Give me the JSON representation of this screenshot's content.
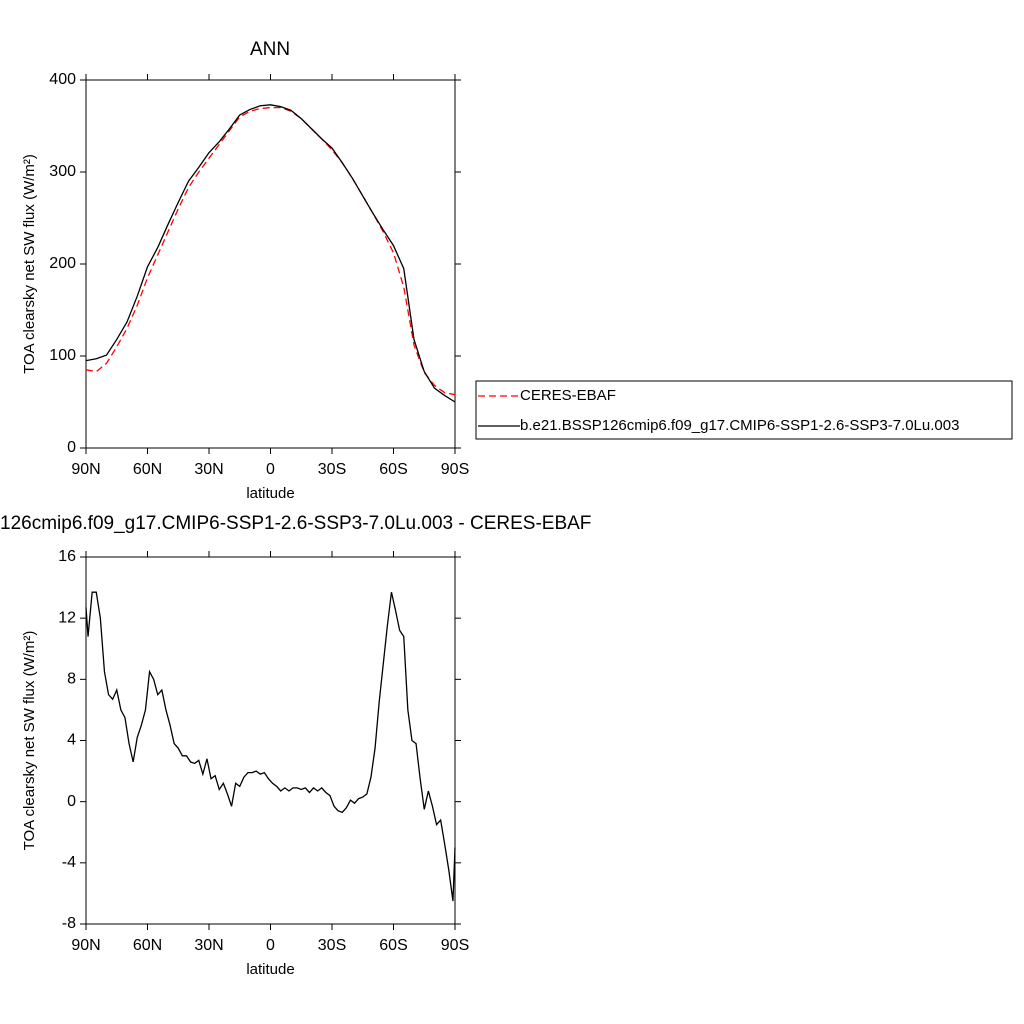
{
  "chart_data": [
    {
      "type": "line",
      "title": "ANN",
      "xlabel": "latitude",
      "ylabel": "TOA clearsky net SW flux (W/m²)",
      "x": [
        90,
        85,
        80,
        75,
        70,
        65,
        60,
        55,
        50,
        45,
        40,
        35,
        30,
        25,
        20,
        15,
        10,
        5,
        0,
        -5,
        -10,
        -15,
        -20,
        -25,
        -30,
        -35,
        -40,
        -45,
        -50,
        -55,
        -60,
        -65,
        -70,
        -75,
        -80,
        -85,
        -90
      ],
      "series": [
        {
          "name": "CERES-EBAF",
          "color": "#ff0000",
          "line_style": "dashed",
          "values": [
            85,
            83,
            92,
            110,
            130,
            155,
            185,
            210,
            235,
            260,
            283,
            300,
            315,
            330,
            345,
            360,
            366,
            369,
            370,
            370,
            366,
            358,
            347,
            336,
            324,
            310,
            293,
            274,
            255,
            235,
            212,
            175,
            112,
            82,
            68,
            60,
            58
          ]
        },
        {
          "name": "b.e21.BSSP126cmip6.f09_g17.CMIP6-SSP1-2.6-SSP3-7.0Lu.003",
          "color": "#000000",
          "line_style": "solid",
          "values": [
            95,
            97,
            101,
            118,
            137,
            165,
            197,
            218,
            243,
            267,
            290,
            305,
            321,
            333,
            347,
            362,
            368,
            372,
            373,
            371,
            367,
            358,
            347,
            336,
            326,
            310,
            293,
            274,
            255,
            237,
            220,
            195,
            118,
            83,
            65,
            57,
            50
          ]
        }
      ],
      "xlim": [
        90,
        -90
      ],
      "xticks": [
        {
          "value": 90,
          "label": "90N"
        },
        {
          "value": 60,
          "label": "60N"
        },
        {
          "value": 30,
          "label": "30N"
        },
        0,
        {
          "value": -30,
          "label": "30S"
        },
        {
          "value": -60,
          "label": "60S"
        },
        {
          "value": -90,
          "label": "90S"
        }
      ],
      "ylim": [
        0,
        400
      ],
      "yticks": [
        0,
        100,
        200,
        300,
        400
      ],
      "legend_position": "right"
    },
    {
      "type": "line",
      "title": "126cmip6.f09_g17.CMIP6-SSP1-2.6-SSP3-7.0Lu.003 - CERES-EBAF",
      "xlabel": "latitude",
      "ylabel": "TOA clearsky net SW flux (W/m²)",
      "x": [
        90,
        89,
        87,
        85,
        83,
        81,
        79,
        77,
        75,
        73,
        71,
        69,
        67,
        65,
        63,
        61,
        59,
        57,
        55,
        53,
        51,
        49,
        47,
        45,
        43,
        41,
        39,
        37,
        35,
        33,
        31,
        29,
        27,
        25,
        23,
        21,
        19,
        17,
        15,
        13,
        11,
        9,
        7,
        5,
        3,
        1,
        -1,
        -3,
        -5,
        -7,
        -9,
        -11,
        -13,
        -15,
        -17,
        -19,
        -21,
        -23,
        -25,
        -27,
        -29,
        -31,
        -33,
        -35,
        -37,
        -39,
        -41,
        -43,
        -45,
        -47,
        -49,
        -51,
        -53,
        -55,
        -57,
        -59,
        -61,
        -63,
        -65,
        -67,
        -69,
        -71,
        -73,
        -75,
        -77,
        -79,
        -81,
        -83,
        -85,
        -87,
        -89,
        -90
      ],
      "series": [
        {
          "color": "#000000",
          "line_style": "solid",
          "values": [
            12.7,
            10.8,
            13.7,
            13.7,
            12,
            8.5,
            7,
            6.7,
            7.3,
            6,
            5.5,
            3.8,
            2.6,
            4.2,
            5,
            6,
            8.5,
            8,
            7,
            7.3,
            6,
            5,
            3.8,
            3.5,
            3,
            3,
            2.6,
            2.5,
            2.7,
            1.8,
            2.8,
            1.5,
            1.7,
            0.8,
            1.2,
            0.5,
            -0.3,
            1.2,
            1,
            1.6,
            1.9,
            1.9,
            2,
            1.8,
            1.9,
            1.5,
            1.2,
            1,
            0.7,
            0.9,
            0.7,
            0.9,
            0.9,
            0.8,
            0.9,
            0.6,
            0.9,
            0.7,
            0.9,
            0.6,
            0.4,
            -0.3,
            -0.6,
            -0.7,
            -0.4,
            0.1,
            -0.1,
            0.2,
            0.3,
            0.5,
            1.6,
            3.5,
            6.5,
            9,
            11.5,
            13.7,
            12.5,
            11.2,
            10.8,
            6,
            4,
            3.8,
            1.5,
            -0.5,
            0.7,
            -0.3,
            -1.5,
            -1.2,
            -2.8,
            -4.5,
            -6.5,
            -3
          ]
        }
      ],
      "xlim": [
        90,
        -90
      ],
      "xticks": [
        {
          "value": 90,
          "label": "90N"
        },
        {
          "value": 60,
          "label": "60N"
        },
        {
          "value": 30,
          "label": "30N"
        },
        0,
        {
          "value": -30,
          "label": "30S"
        },
        {
          "value": -60,
          "label": "60S"
        },
        {
          "value": -90,
          "label": "90S"
        }
      ],
      "ylim": [
        -8,
        16
      ],
      "yticks": [
        -8,
        -4,
        0,
        4,
        8,
        12,
        16
      ]
    }
  ]
}
